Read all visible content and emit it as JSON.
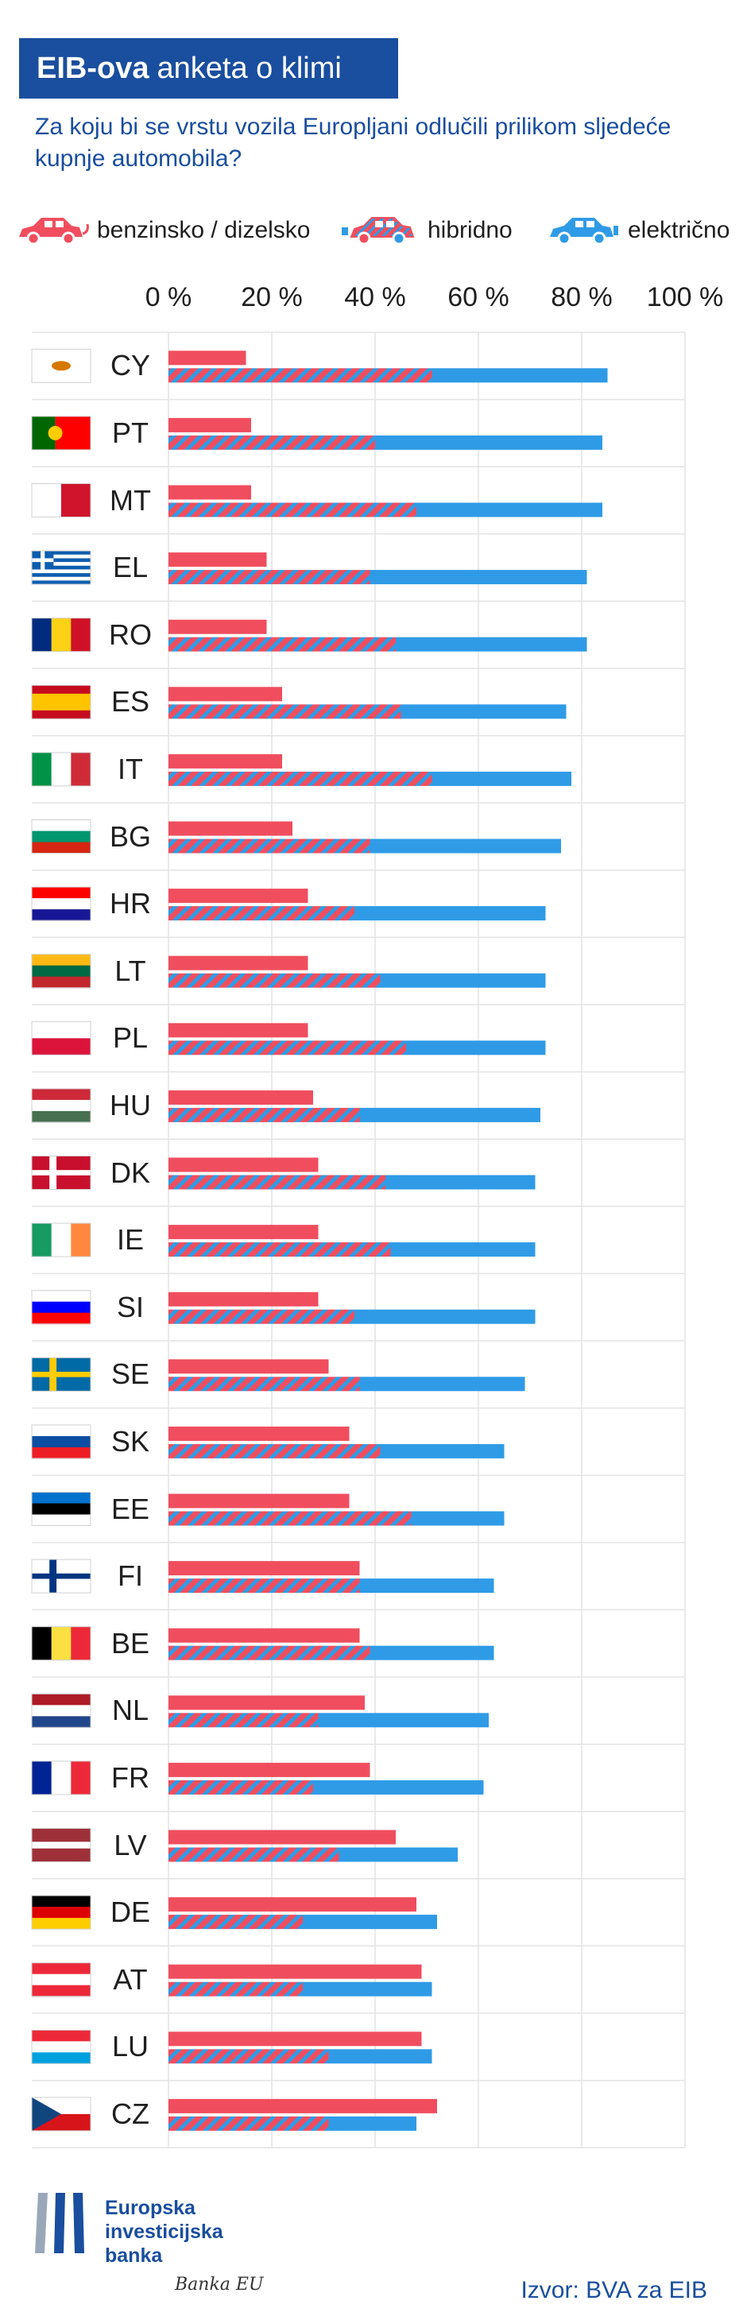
{
  "header": {
    "title_bold": "EIB-ova",
    "title_rest": "anketa o klimi",
    "subtitle": "Za koju bi se vrstu vozila Europljani odlučili prilikom sljedeće kupnje automobila?"
  },
  "legend": {
    "petrol": "benzinsko / dizelsko",
    "hybrid": "hibridno",
    "electric": "električno"
  },
  "colors": {
    "petrol": "#f04e5e",
    "electric": "#2f9be6",
    "brand": "#1a4e9e"
  },
  "chart_data": {
    "type": "bar",
    "orientation": "horizontal-stacked",
    "xlim": [
      0,
      100
    ],
    "tick_labels": [
      "0 %",
      "20 %",
      "40 %",
      "60 %",
      "80 %",
      "100 %"
    ],
    "categories": [
      "CY",
      "PT",
      "MT",
      "EL",
      "RO",
      "ES",
      "IT",
      "BG",
      "HR",
      "LT",
      "PL",
      "HU",
      "DK",
      "IE",
      "SI",
      "SE",
      "SK",
      "EE",
      "FI",
      "BE",
      "NL",
      "FR",
      "LV",
      "DE",
      "AT",
      "LU",
      "CZ"
    ],
    "series": [
      {
        "name": "benzinsko / dizelsko",
        "values": [
          15,
          16,
          16,
          19,
          19,
          22,
          22,
          24,
          27,
          27,
          27,
          28,
          29,
          29,
          29,
          31,
          35,
          35,
          37,
          37,
          38,
          39,
          44,
          48,
          49,
          49,
          52
        ]
      },
      {
        "name": "hibridno",
        "values": [
          51,
          40,
          48,
          39,
          44,
          45,
          51,
          39,
          36,
          41,
          46,
          37,
          42,
          43,
          36,
          37,
          41,
          47,
          37,
          39,
          29,
          28,
          33,
          26,
          26,
          31,
          31
        ]
      },
      {
        "name": "električno",
        "values": [
          34,
          44,
          36,
          42,
          37,
          32,
          27,
          37,
          37,
          32,
          27,
          35,
          29,
          28,
          35,
          32,
          24,
          18,
          26,
          24,
          33,
          33,
          23,
          26,
          25,
          20,
          17
        ]
      }
    ]
  },
  "footer": {
    "org_line1": "Europska",
    "org_line2": "investicijska",
    "org_line3": "banka",
    "signature": "Banka EU",
    "source": "Izvor: BVA za EIB"
  }
}
